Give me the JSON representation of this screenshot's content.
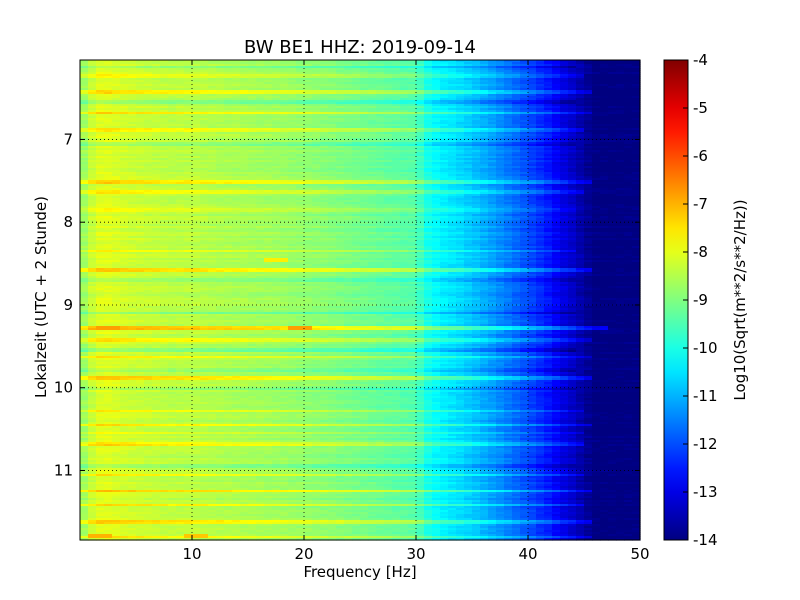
{
  "chart_data": {
    "type": "heatmap",
    "title": "BW BE1 HHZ: 2019-09-14",
    "xlabel": "Frequency [Hz]",
    "ylabel": "Lokalzeit (UTC + 2 Stunde)",
    "xlim": [
      0,
      50
    ],
    "ylim": [
      6.04,
      11.84
    ],
    "y_inverted": true,
    "x_ticks": [
      "10",
      "20",
      "30",
      "40",
      "50"
    ],
    "x_tick_values": [
      10,
      20,
      30,
      40,
      50
    ],
    "y_ticks": [
      "7",
      "8",
      "9",
      "10",
      "11"
    ],
    "y_tick_values": [
      7,
      8,
      9,
      10,
      11
    ],
    "grid": true,
    "colormap": "jet",
    "colorbar": {
      "label": "Log10(Sqrt(m**2/s**2/Hz))",
      "range": [
        -14,
        -4
      ],
      "ticks": [
        "-4",
        "-5",
        "-6",
        "-7",
        "-8",
        "-9",
        "-10",
        "-11",
        "-12",
        "-13",
        "-14"
      ],
      "tick_values": [
        -4,
        -5,
        -6,
        -7,
        -8,
        -9,
        -10,
        -11,
        -12,
        -13,
        -14
      ]
    },
    "spectral_profile": {
      "frequency_hz": [
        0,
        1,
        2,
        4,
        6,
        8,
        10,
        12,
        15,
        18,
        20,
        22,
        25,
        28,
        30,
        31,
        32,
        34,
        36,
        38,
        40,
        42,
        43,
        44,
        45,
        46,
        48,
        50
      ],
      "value": [
        -8.9,
        -8.3,
        -8.0,
        -8.2,
        -8.3,
        -8.4,
        -8.4,
        -8.5,
        -8.6,
        -8.7,
        -8.8,
        -8.9,
        -9.1,
        -9.3,
        -9.4,
        -10.0,
        -10.3,
        -10.6,
        -11.0,
        -11.5,
        -12.0,
        -12.6,
        -13.0,
        -13.3,
        -13.7,
        -14.0,
        -14.0,
        -14.0
      ]
    },
    "time_bands": [
      {
        "time": 6.12,
        "offset": -0.6,
        "extent_hz": 44
      },
      {
        "time": 6.23,
        "offset": 0.5,
        "extent_hz": 45
      },
      {
        "time": 6.42,
        "offset": 0.8,
        "extent_hz": 46
      },
      {
        "time": 6.55,
        "offset": -0.5,
        "extent_hz": 44
      },
      {
        "time": 6.68,
        "offset": 0.7,
        "extent_hz": 46
      },
      {
        "time": 6.88,
        "offset": 0.6,
        "extent_hz": 45
      },
      {
        "time": 7.05,
        "offset": -0.4,
        "extent_hz": 44
      },
      {
        "time": 7.52,
        "offset": 0.8,
        "extent_hz": 46
      },
      {
        "time": 7.64,
        "offset": 0.5,
        "extent_hz": 45
      },
      {
        "time": 7.85,
        "offset": 0.3,
        "extent_hz": 44
      },
      {
        "time": 8.35,
        "offset": 0.5,
        "extent_hz": 44
      },
      {
        "time": 8.58,
        "offset": 0.9,
        "extent_hz": 46
      },
      {
        "time": 8.7,
        "offset": -0.3,
        "extent_hz": 44
      },
      {
        "time": 9.1,
        "offset": -0.5,
        "extent_hz": 44
      },
      {
        "time": 9.28,
        "offset": 1.2,
        "extent_hz": 47
      },
      {
        "time": 9.42,
        "offset": 0.7,
        "extent_hz": 46
      },
      {
        "time": 9.55,
        "offset": -0.6,
        "extent_hz": 44
      },
      {
        "time": 9.63,
        "offset": 0.7,
        "extent_hz": 46
      },
      {
        "time": 9.78,
        "offset": -0.4,
        "extent_hz": 44
      },
      {
        "time": 9.88,
        "offset": 0.9,
        "extent_hz": 46
      },
      {
        "time": 10.02,
        "offset": -0.4,
        "extent_hz": 44
      },
      {
        "time": 10.28,
        "offset": 0.6,
        "extent_hz": 45
      },
      {
        "time": 10.45,
        "offset": 0.8,
        "extent_hz": 46
      },
      {
        "time": 10.55,
        "offset": 0.5,
        "extent_hz": 45
      },
      {
        "time": 10.68,
        "offset": 0.7,
        "extent_hz": 45
      },
      {
        "time": 10.95,
        "offset": -0.4,
        "extent_hz": 44
      },
      {
        "time": 11.05,
        "offset": 0.6,
        "extent_hz": 45
      },
      {
        "time": 11.25,
        "offset": 0.9,
        "extent_hz": 46
      },
      {
        "time": 11.42,
        "offset": 0.7,
        "extent_hz": 45
      },
      {
        "time": 11.62,
        "offset": 0.9,
        "extent_hz": 46
      },
      {
        "time": 11.8,
        "offset": 0.8,
        "extent_hz": 46
      }
    ],
    "hot_spots": [
      {
        "time": 9.28,
        "frequency_hz": 2.5,
        "value": -6.8
      },
      {
        "time": 9.28,
        "frequency_hz": 19.5,
        "value": -6.8
      },
      {
        "time": 11.8,
        "frequency_hz": 2.0,
        "value": -7.0
      },
      {
        "time": 11.8,
        "frequency_hz": 10.5,
        "value": -7.2
      },
      {
        "time": 8.45,
        "frequency_hz": 17.5,
        "value": -7.6
      }
    ]
  }
}
